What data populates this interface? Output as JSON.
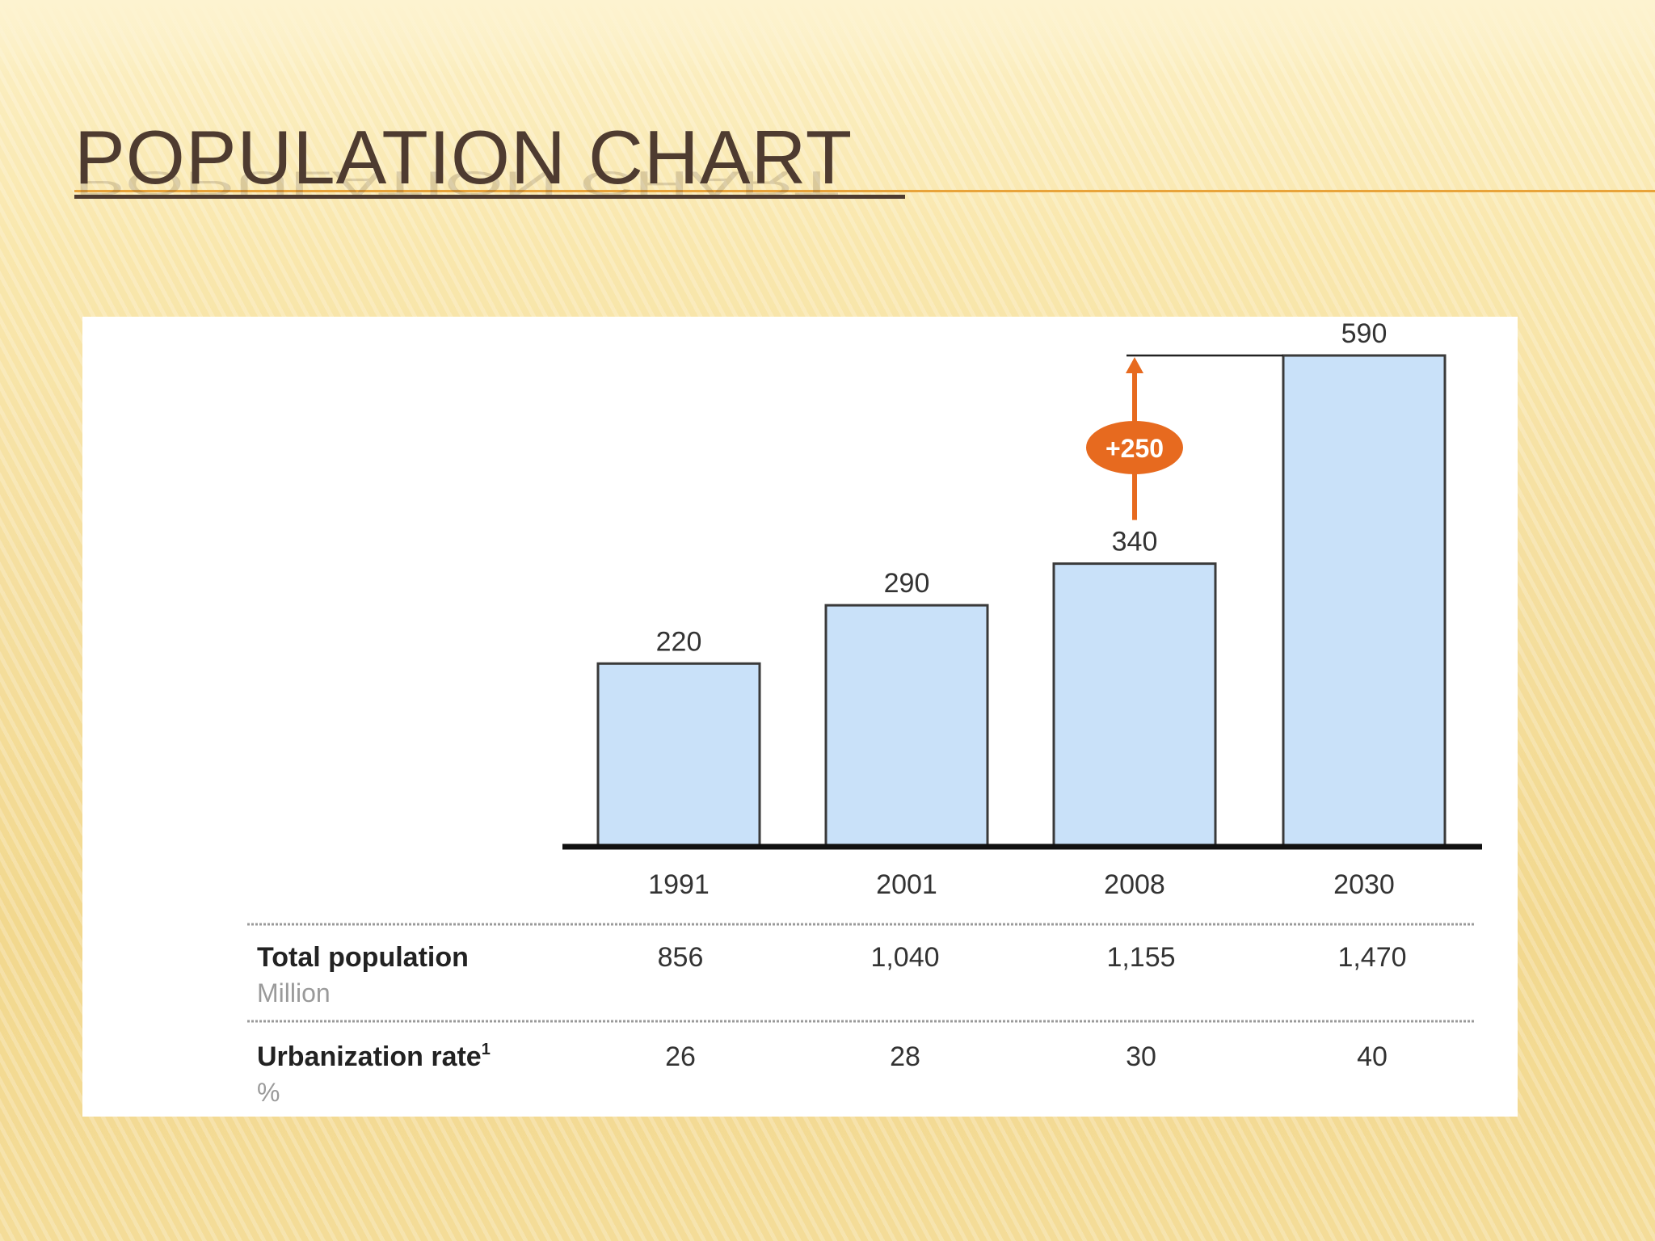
{
  "slide": {
    "title": "POPULATION CHART"
  },
  "chart_data": {
    "type": "bar",
    "categories": [
      "1991",
      "2001",
      "2008",
      "2030"
    ],
    "values": [
      220,
      290,
      340,
      590
    ],
    "data_labels": [
      "220",
      "290",
      "340",
      "590"
    ],
    "ylim": [
      0,
      600
    ],
    "bar_fill": "#c9e1f9",
    "bar_stroke": "#3a3a3a",
    "annotation": {
      "text": "+250",
      "from_value": 340,
      "to_value": 590,
      "color": "#e76a1f"
    },
    "table": [
      {
        "label": "Total population",
        "unit": "Million",
        "values": [
          "856",
          "1,040",
          "1,155",
          "1,470"
        ]
      },
      {
        "label": "Urbanization rate",
        "label_sup": "1",
        "unit": "%",
        "values": [
          "26",
          "28",
          "30",
          "40"
        ]
      }
    ]
  }
}
